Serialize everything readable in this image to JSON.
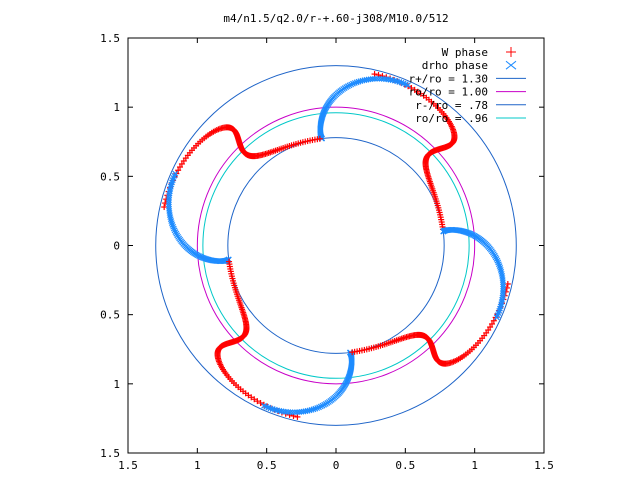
{
  "chart_data": {
    "type": "scatter",
    "title": "m4/n1.5/q2.0/r-+.60-j308/M10.0/512",
    "x_ticks": [
      "1.5",
      "1",
      "0.5",
      "0",
      "0.5",
      "1",
      "1.5"
    ],
    "y_ticks": [
      "1.5",
      "1",
      "0.5",
      "0",
      "0.5",
      "1",
      "1.5"
    ],
    "xlim": [
      -1.5,
      1.5
    ],
    "ylim": [
      -1.5,
      1.5
    ],
    "grid": false,
    "legend_position": "top-right",
    "circles": [
      {
        "label": "r+/ro = 1.30",
        "radius": 1.3,
        "color": "#1e64c8"
      },
      {
        "label": "ro/ro = 1.00",
        "radius": 1.0,
        "color": "#c800c8"
      },
      {
        "label": "r-/ro = .78",
        "radius": 0.78,
        "color": "#1e64c8"
      },
      {
        "label": "ro/ro = .96",
        "radius": 0.96,
        "color": "#00c8c8"
      }
    ],
    "series": [
      {
        "name": "W phase",
        "marker": "plus",
        "color": "#ff0000"
      },
      {
        "name": "drho phase",
        "marker": "cross",
        "color": "#1e8cff"
      }
    ],
    "arms": 4
  }
}
